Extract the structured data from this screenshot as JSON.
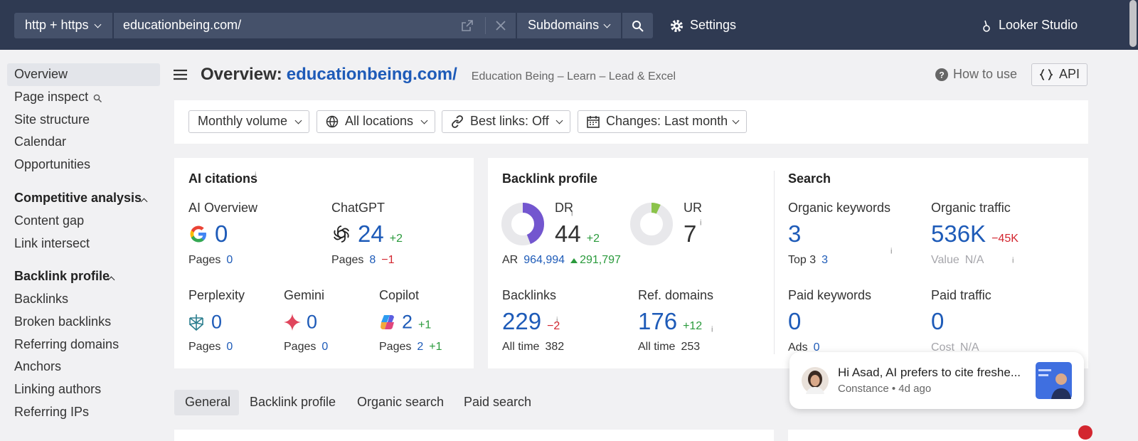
{
  "topbar": {
    "protocol": "http + https",
    "url": "educationbeing.com/",
    "mode": "Subdomains",
    "settings": "Settings",
    "looker": "Looker Studio"
  },
  "sidebar": {
    "items": [
      "Overview",
      "Page inspect",
      "Site structure",
      "Calendar",
      "Opportunities"
    ],
    "groups": [
      {
        "title": "Competitive analysis",
        "items": [
          "Content gap",
          "Link intersect"
        ]
      },
      {
        "title": "Backlink profile",
        "items": [
          "Backlinks",
          "Broken backlinks",
          "Referring domains",
          "Anchors",
          "Linking authors",
          "Referring IPs"
        ]
      }
    ]
  },
  "header": {
    "title": "Overview:",
    "domain": "educationbeing.com/",
    "site_name": "Education Being – Learn – Lead & Excel",
    "how_to": "How to use",
    "api": "API"
  },
  "filters": [
    "Monthly volume",
    "All locations",
    "Best links: Off",
    "Changes: Last month"
  ],
  "info_icon": "i",
  "ai_citations": {
    "title": "AI citations",
    "pages_label": "Pages",
    "engines": [
      {
        "name": "AI Overview",
        "value": "0",
        "pages": "0"
      },
      {
        "name": "ChatGPT",
        "value": "24",
        "change": "+2",
        "pages": "8",
        "pages_change": "−1"
      },
      {
        "name": "Perplexity",
        "value": "0",
        "pages": "0"
      },
      {
        "name": "Gemini",
        "value": "0",
        "pages": "0"
      },
      {
        "name": "Copilot",
        "value": "2",
        "change": "+1",
        "pages": "2",
        "pages_change": "+1"
      }
    ]
  },
  "backlink_profile": {
    "title": "Backlink profile",
    "dr": {
      "label": "DR",
      "value": 44,
      "change": "+2"
    },
    "ur": {
      "label": "UR",
      "value": 7
    },
    "ar": {
      "label": "AR",
      "value": "964,994",
      "change": "291,797"
    },
    "backlinks": {
      "label": "Backlinks",
      "value": "229",
      "change": "−2",
      "all_time_label": "All time",
      "all_time": "382"
    },
    "ref_domains": {
      "label": "Ref. domains",
      "value": "176",
      "change": "+12",
      "all_time_label": "All time",
      "all_time": "253"
    }
  },
  "search": {
    "title": "Search",
    "organic_keywords": {
      "label": "Organic keywords",
      "value": "3",
      "sub_label": "Top 3",
      "sub_value": "3"
    },
    "organic_traffic": {
      "label": "Organic traffic",
      "value": "536K",
      "change": "−45K",
      "sub_label": "Value",
      "sub_value": "N/A"
    },
    "paid_keywords": {
      "label": "Paid keywords",
      "value": "0",
      "sub_label": "Ads",
      "sub_value": "0"
    },
    "paid_traffic": {
      "label": "Paid traffic",
      "value": "0",
      "sub_label": "Cost",
      "sub_value": "N/A"
    }
  },
  "tabs": [
    "General",
    "Backlink profile",
    "Organic search",
    "Paid search"
  ],
  "chat": {
    "message": "Hi Asad,  AI prefers to cite freshe...",
    "meta": "Constance • 4d ago"
  }
}
